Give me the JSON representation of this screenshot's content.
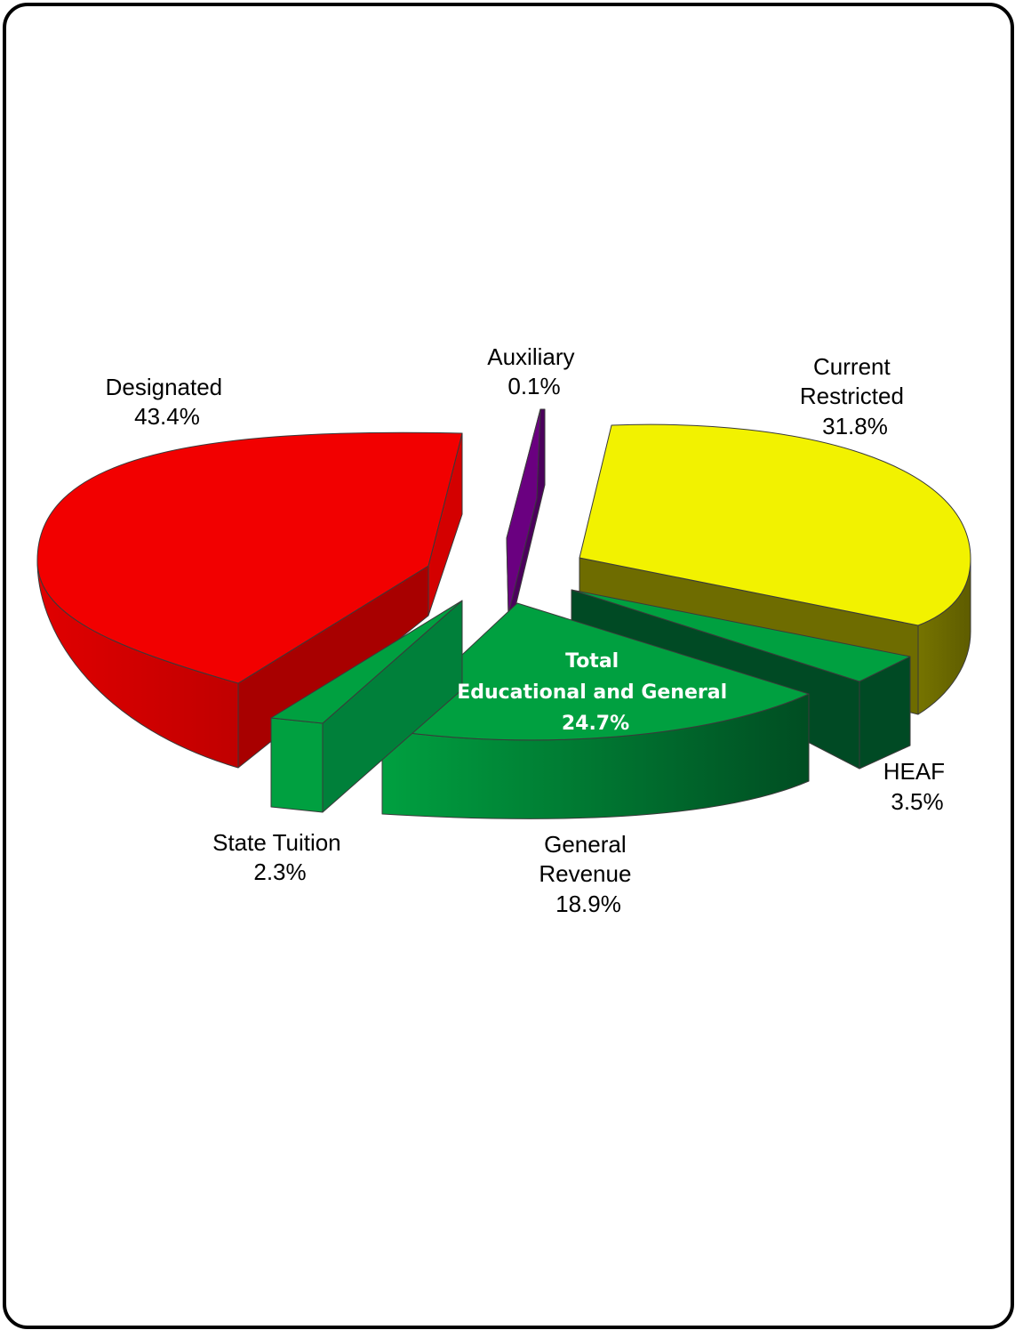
{
  "chart_data": {
    "type": "pie",
    "style": "3d-exploded",
    "slices": [
      {
        "name": "Designated",
        "value": 43.4,
        "label_lines": [
          "Designated",
          "43.4%"
        ],
        "color": "#f20000"
      },
      {
        "name": "Auxiliary",
        "value": 0.1,
        "label_lines": [
          "Auxiliary",
          "0.1%"
        ],
        "color": "#6a0080"
      },
      {
        "name": "Current Restricted",
        "value": 31.8,
        "label_lines": [
          "Current",
          "Restricted",
          "31.8%"
        ],
        "color": "#f2f200"
      },
      {
        "name": "HEAF",
        "value": 3.5,
        "label_lines": [
          "HEAF",
          "3.5%"
        ],
        "color": "#00a040"
      },
      {
        "name": "General Revenue",
        "value": 18.9,
        "label_lines": [
          "General",
          "Revenue",
          "18.9%"
        ],
        "color": "#00a040"
      },
      {
        "name": "State Tuition",
        "value": 2.3,
        "label_lines": [
          "State Tuition",
          "2.3%"
        ],
        "color": "#00a040"
      }
    ],
    "group": {
      "label_lines": [
        "Total",
        "Educational and General",
        "24.7%"
      ],
      "value": 24.7,
      "members": [
        "HEAF",
        "General Revenue",
        "State Tuition"
      ]
    }
  }
}
